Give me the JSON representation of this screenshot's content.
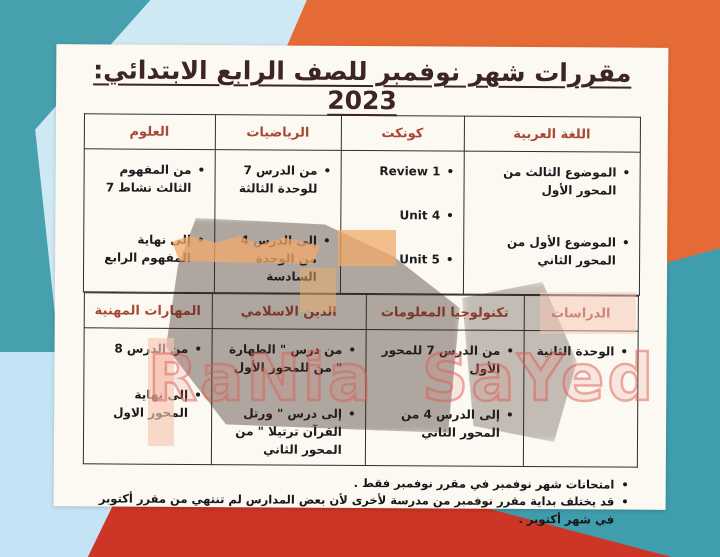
{
  "title": "مقررات شهر نوفمبر للصف الرابع الابتدائي: 2023",
  "watermark": {
    "part1": "RaNia",
    "part2": "SaYed"
  },
  "colors": {
    "teal": "#47a0ad",
    "light_cyan": "#cfe9f4",
    "light_blue": "#c4e4f6",
    "orange": "#e56b36",
    "red": "#cd3526",
    "paper": "#fbf9f1",
    "header_text": "#a84836",
    "title_text": "#3d2521"
  },
  "table_upper": {
    "columns_rtl": [
      {
        "header": "اللغة العربية",
        "items": [
          "الموضوع الثالث من المحور الأول",
          "الموضوع الأول من المحور الثاني"
        ]
      },
      {
        "header": "كونكت",
        "items": [
          "Review 1",
          "Unit 4",
          "Unit 5"
        ]
      },
      {
        "header": "الرياضيات",
        "items": [
          "من الدرس 7 للوحدة الثالثة",
          "إلى الدرس 4 من الوحدة السادسة"
        ]
      },
      {
        "header": "العلوم",
        "items": [
          "من المفهوم الثالث نشاط 7",
          "إلى نهاية المفهوم الرابع"
        ]
      }
    ]
  },
  "table_lower": {
    "columns_rtl": [
      {
        "header": "الدراسات",
        "items": [
          "الوحدة الثانية"
        ]
      },
      {
        "header": "تكنولوجيا المعلومات",
        "items": [
          "من الدرس 7 للمحور الأول",
          "إلى الدرس 4 من المحور الثاني"
        ]
      },
      {
        "header": "الدين الاسلامي",
        "items": [
          "من درس \" الطهارة \" من للمحور الأول",
          "إلى درس \" ورتل القرآن ترتيلا \" من المحور الثاني"
        ]
      },
      {
        "header": "المهارات المهنية",
        "items": [
          "من الدرس 8",
          "إلى نهاية المحور الاول"
        ]
      }
    ]
  },
  "notes": [
    "امتحانات شهر نوفمبر في مقرر نوفمبر فقط .",
    "قد يختلف بداية مقرر نوفمبر من مدرسة لأخرى لأن بعض المدارس لم تنتهي من مقرر أكتوبر في شهر أكتوبر ."
  ],
  "bullet_glyph": "•"
}
